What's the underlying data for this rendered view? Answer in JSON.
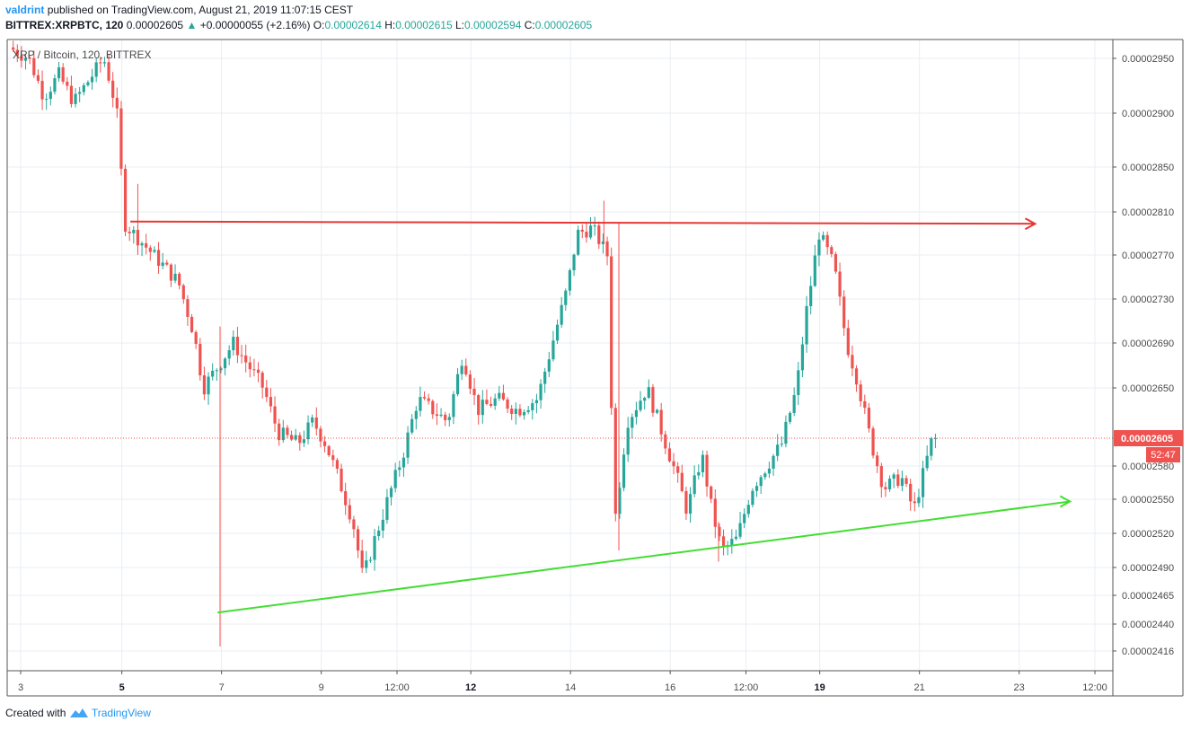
{
  "header": {
    "publisher": "valdrint",
    "published_text": "published on TradingView.com, August 21, 2019 11:07:15 CEST",
    "symbol": "BITTREX:XRPBTC, 120",
    "last": "0.00002605",
    "change": "+0.00000055 (+2.16%)",
    "o_label": "O:",
    "o_value": "0.00002614",
    "h_label": "H:",
    "h_value": "0.00002615",
    "l_label": "L:",
    "l_value": "0.00002594",
    "c_label": "C:",
    "c_value": "0.00002605"
  },
  "footer": {
    "created_with": "Created with",
    "brand": "TradingView"
  },
  "colors": {
    "up": "#26a69a",
    "down": "#ef5350",
    "grid": "#e9eef3",
    "resistance": "#e53935",
    "support": "#44dd33",
    "price_badge": "#ef5350",
    "axis_text": "#4a4a4a"
  },
  "chart_data": {
    "type": "candlestick",
    "title": "XRP / Bitcoin, 120, BITTREX",
    "x_labels": [
      {
        "t": 0.15,
        "label": "3",
        "bold": false
      },
      {
        "t": 2.18,
        "label": "5",
        "bold": true
      },
      {
        "t": 4.18,
        "label": "7",
        "bold": false
      },
      {
        "t": 6.18,
        "label": "9",
        "bold": false
      },
      {
        "t": 7.7,
        "label": "12:00",
        "bold": false
      },
      {
        "t": 9.18,
        "label": "12",
        "bold": true
      },
      {
        "t": 11.18,
        "label": "14",
        "bold": false
      },
      {
        "t": 13.18,
        "label": "16",
        "bold": false
      },
      {
        "t": 14.7,
        "label": "12:00",
        "bold": false
      },
      {
        "t": 16.18,
        "label": "19",
        "bold": true
      },
      {
        "t": 18.18,
        "label": "21",
        "bold": false
      },
      {
        "t": 20.18,
        "label": "23",
        "bold": false
      },
      {
        "t": 21.7,
        "label": "12:00",
        "bold": false
      }
    ],
    "y_ticks": [
      "0.00002950",
      "0.00002900",
      "0.00002850",
      "0.00002810",
      "0.00002770",
      "0.00002730",
      "0.00002690",
      "0.00002650",
      "0.00002580",
      "0.00002550",
      "0.00002520",
      "0.00002490",
      "0.00002465",
      "0.00002440",
      "0.00002416"
    ],
    "last_price": "0.00002605",
    "countdown": "52:47",
    "price_path": [
      [
        0.0,
        2960
      ],
      [
        0.4,
        2950
      ],
      [
        0.7,
        2915
      ],
      [
        1.0,
        2935
      ],
      [
        1.3,
        2910
      ],
      [
        1.6,
        2930
      ],
      [
        1.9,
        2950
      ],
      [
        2.05,
        2925
      ],
      [
        2.2,
        2890
      ],
      [
        2.3,
        2800
      ],
      [
        2.5,
        2790
      ],
      [
        2.7,
        2780
      ],
      [
        3.0,
        2765
      ],
      [
        3.4,
        2745
      ],
      [
        3.7,
        2700
      ],
      [
        3.9,
        2650
      ],
      [
        4.2,
        2670
      ],
      [
        4.5,
        2690
      ],
      [
        4.8,
        2670
      ],
      [
        5.1,
        2650
      ],
      [
        5.4,
        2610
      ],
      [
        5.8,
        2600
      ],
      [
        6.1,
        2620
      ],
      [
        6.35,
        2600
      ],
      [
        6.6,
        2570
      ],
      [
        6.9,
        2530
      ],
      [
        7.1,
        2480
      ],
      [
        7.3,
        2510
      ],
      [
        7.6,
        2550
      ],
      [
        7.9,
        2590
      ],
      [
        8.2,
        2640
      ],
      [
        8.5,
        2630
      ],
      [
        8.8,
        2620
      ],
      [
        9.1,
        2680
      ],
      [
        9.4,
        2630
      ],
      [
        9.8,
        2640
      ],
      [
        10.2,
        2630
      ],
      [
        10.6,
        2640
      ],
      [
        10.9,
        2690
      ],
      [
        11.2,
        2740
      ],
      [
        11.4,
        2790
      ],
      [
        11.7,
        2795
      ],
      [
        12.0,
        2770
      ],
      [
        12.15,
        2530
      ],
      [
        12.4,
        2620
      ],
      [
        12.8,
        2650
      ],
      [
        13.1,
        2610
      ],
      [
        13.4,
        2570
      ],
      [
        13.6,
        2540
      ],
      [
        13.9,
        2590
      ],
      [
        14.1,
        2540
      ],
      [
        14.3,
        2505
      ],
      [
        14.6,
        2515
      ],
      [
        14.9,
        2560
      ],
      [
        15.2,
        2580
      ],
      [
        15.5,
        2600
      ],
      [
        15.8,
        2650
      ],
      [
        16.0,
        2720
      ],
      [
        16.25,
        2790
      ],
      [
        16.55,
        2760
      ],
      [
        16.8,
        2690
      ],
      [
        17.0,
        2660
      ],
      [
        17.3,
        2600
      ],
      [
        17.55,
        2560
      ],
      [
        17.9,
        2570
      ],
      [
        18.15,
        2540
      ],
      [
        18.35,
        2575
      ],
      [
        18.55,
        2610
      ]
    ],
    "resistance_line": {
      "x1": 2.35,
      "y1": 2801,
      "x2": 20.5,
      "y2": 2799
    },
    "support_line": {
      "x1": 4.1,
      "y1": 2450,
      "x2": 21.2,
      "y2": 2548
    },
    "wicks": [
      {
        "t": 2.5,
        "high": 2835,
        "low": 2770
      },
      {
        "t": 4.15,
        "high": 2705,
        "low": 2420
      },
      {
        "t": 11.85,
        "high": 2820,
        "low": 2780
      },
      {
        "t": 12.15,
        "high": 2800,
        "low": 2505
      },
      {
        "t": 14.15,
        "high": 2530,
        "low": 2495
      }
    ]
  }
}
